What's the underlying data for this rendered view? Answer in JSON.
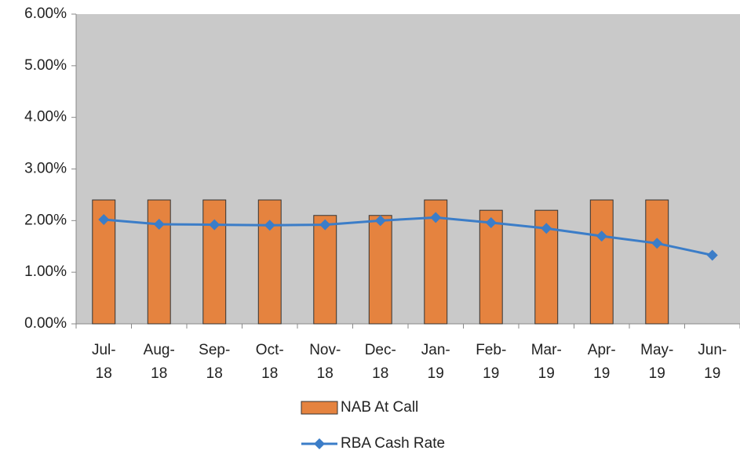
{
  "chart_data": {
    "type": "bar",
    "categories": [
      "Jul-18",
      "Aug-18",
      "Sep-18",
      "Oct-18",
      "Nov-18",
      "Dec-18",
      "Jan-19",
      "Feb-19",
      "Mar-19",
      "Apr-19",
      "May-19",
      "Jun-19"
    ],
    "series": [
      {
        "name": "NAB At Call",
        "type": "bar",
        "color": "#e5833f",
        "values": [
          2.4,
          2.4,
          2.4,
          2.4,
          2.1,
          2.1,
          2.4,
          2.2,
          2.2,
          2.4,
          2.4,
          null
        ]
      },
      {
        "name": "RBA Cash Rate",
        "type": "line",
        "color": "#3b7dc8",
        "values": [
          2.02,
          1.93,
          1.92,
          1.91,
          1.92,
          2.0,
          2.06,
          1.96,
          1.85,
          1.7,
          1.56,
          1.33
        ]
      }
    ],
    "ylim": [
      0,
      6
    ],
    "yticks": [
      {
        "value": 0,
        "label": "0.00%"
      },
      {
        "value": 1,
        "label": "1.00%"
      },
      {
        "value": 2,
        "label": "2.00%"
      },
      {
        "value": 3,
        "label": "3.00%"
      },
      {
        "value": 4,
        "label": "4.00%"
      },
      {
        "value": 5,
        "label": "5.00%"
      },
      {
        "value": 6,
        "label": "6.00%"
      }
    ],
    "legend": "bottom"
  }
}
